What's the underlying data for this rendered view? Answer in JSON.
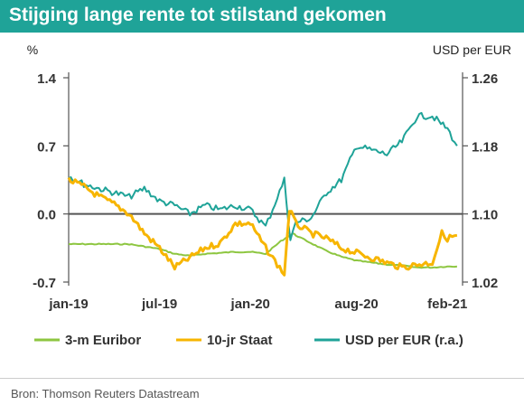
{
  "chart_data": {
    "type": "line",
    "title": "Stijging lange rente tot stilstand gekomen",
    "source": "Bron: Thomson Reuters Datastream",
    "y_left": {
      "unit": "%",
      "ticks": [
        "1.4",
        "0.7",
        "0.0",
        "-0.7"
      ],
      "range": [
        -0.7,
        1.4
      ]
    },
    "y_right": {
      "unit": "USD per EUR",
      "ticks": [
        "1.26",
        "1.18",
        "1.10",
        "1.02"
      ],
      "range": [
        1.02,
        1.26
      ]
    },
    "x_ticks": [
      "jan-19",
      "jul-19",
      "jan-20",
      "aug-20",
      "feb-21"
    ],
    "x_range": [
      "2019-01",
      "2021-03"
    ],
    "grid": false,
    "legend_position": "bottom",
    "colors": {
      "title_bg": "#1fa398",
      "euribor": "#8dc640",
      "staat": "#f7b500",
      "usd": "#1fa398",
      "axis": "#555555"
    },
    "series": [
      {
        "name": "3-m Euribor",
        "axis": "left",
        "points": [
          [
            "2019-01",
            -0.31
          ],
          [
            "2019-03",
            -0.31
          ],
          [
            "2019-05",
            -0.31
          ],
          [
            "2019-07",
            -0.36
          ],
          [
            "2019-08",
            -0.41
          ],
          [
            "2019-09",
            -0.43
          ],
          [
            "2019-10",
            -0.41
          ],
          [
            "2019-12",
            -0.39
          ],
          [
            "2020-01",
            -0.39
          ],
          [
            "2020-02",
            -0.41
          ],
          [
            "2020-03",
            -0.28
          ],
          [
            "2020-03-25",
            -0.2
          ],
          [
            "2020-04",
            -0.22
          ],
          [
            "2020-05",
            -0.3
          ],
          [
            "2020-06",
            -0.38
          ],
          [
            "2020-07",
            -0.44
          ],
          [
            "2020-08",
            -0.48
          ],
          [
            "2020-09",
            -0.5
          ],
          [
            "2020-10",
            -0.52
          ],
          [
            "2020-11",
            -0.53
          ],
          [
            "2020-12",
            -0.55
          ],
          [
            "2021-01",
            -0.55
          ],
          [
            "2021-02",
            -0.54
          ],
          [
            "2021-02-20",
            -0.54
          ]
        ]
      },
      {
        "name": "10-jr Staat",
        "axis": "left",
        "points": [
          [
            "2019-01",
            0.35
          ],
          [
            "2019-02",
            0.28
          ],
          [
            "2019-03",
            0.18
          ],
          [
            "2019-04",
            0.1
          ],
          [
            "2019-05",
            0.0
          ],
          [
            "2019-06",
            -0.2
          ],
          [
            "2019-07",
            -0.35
          ],
          [
            "2019-08",
            -0.55
          ],
          [
            "2019-09",
            -0.45
          ],
          [
            "2019-10",
            -0.35
          ],
          [
            "2019-11",
            -0.3
          ],
          [
            "2019-12",
            -0.1
          ],
          [
            "2020-01",
            -0.1
          ],
          [
            "2020-02",
            -0.35
          ],
          [
            "2020-03-08",
            -0.62
          ],
          [
            "2020-03-18",
            0.05
          ],
          [
            "2020-04",
            -0.1
          ],
          [
            "2020-05",
            -0.2
          ],
          [
            "2020-06",
            -0.25
          ],
          [
            "2020-07",
            -0.35
          ],
          [
            "2020-08",
            -0.4
          ],
          [
            "2020-09",
            -0.45
          ],
          [
            "2020-10",
            -0.5
          ],
          [
            "2020-11",
            -0.55
          ],
          [
            "2020-12",
            -0.52
          ],
          [
            "2021-01",
            -0.5
          ],
          [
            "2021-01-20",
            -0.2
          ],
          [
            "2021-02",
            -0.25
          ],
          [
            "2021-02-20",
            -0.22
          ]
        ]
      },
      {
        "name": "USD per EUR (r.a.)",
        "axis": "right",
        "points": [
          [
            "2019-01",
            1.145
          ],
          [
            "2019-02",
            1.135
          ],
          [
            "2019-03",
            1.13
          ],
          [
            "2019-04",
            1.125
          ],
          [
            "2019-05",
            1.12
          ],
          [
            "2019-06",
            1.13
          ],
          [
            "2019-07",
            1.115
          ],
          [
            "2019-08",
            1.11
          ],
          [
            "2019-09",
            1.1
          ],
          [
            "2019-10",
            1.11
          ],
          [
            "2019-11",
            1.105
          ],
          [
            "2019-12",
            1.11
          ],
          [
            "2020-01",
            1.105
          ],
          [
            "2020-02",
            1.085
          ],
          [
            "2020-03-08",
            1.14
          ],
          [
            "2020-03-20",
            1.07
          ],
          [
            "2020-04",
            1.09
          ],
          [
            "2020-05",
            1.095
          ],
          [
            "2020-06",
            1.125
          ],
          [
            "2020-07",
            1.14
          ],
          [
            "2020-08",
            1.18
          ],
          [
            "2020-09",
            1.175
          ],
          [
            "2020-10",
            1.17
          ],
          [
            "2020-11",
            1.185
          ],
          [
            "2020-12",
            1.215
          ],
          [
            "2021-01",
            1.215
          ],
          [
            "2021-02",
            1.2
          ],
          [
            "2021-02-20",
            1.18
          ]
        ]
      }
    ]
  }
}
